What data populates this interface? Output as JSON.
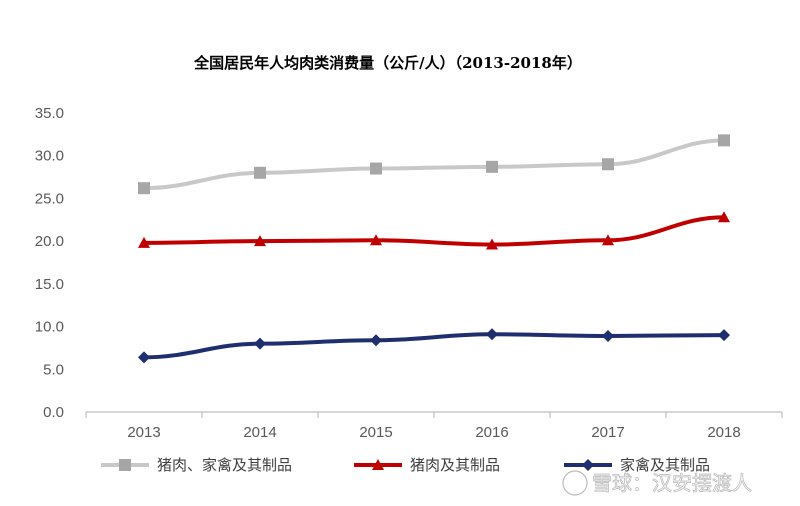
{
  "chart_data": {
    "type": "line",
    "title": "全国居民年人均肉类消费量（公斤/人）（2013-2018年）",
    "xlabel": "",
    "ylabel": "",
    "categories": [
      "2013",
      "2014",
      "2015",
      "2016",
      "2017",
      "2018"
    ],
    "ylim": [
      0,
      35
    ],
    "yticks": [
      "0.0",
      "5.0",
      "10.0",
      "15.0",
      "20.0",
      "25.0",
      "30.0",
      "35.0"
    ],
    "grid": false,
    "legend_position": "bottom",
    "series": [
      {
        "name": "猪肉、家禽及其制品",
        "values": [
          26.2,
          28.0,
          28.5,
          28.7,
          29.0,
          31.8
        ],
        "color": "#c8c8c8",
        "marker": "square"
      },
      {
        "name": "猪肉及其制品",
        "values": [
          19.8,
          20.0,
          20.1,
          19.6,
          20.1,
          22.8
        ],
        "color": "#c00000",
        "marker": "triangle"
      },
      {
        "name": "家禽及其制品",
        "values": [
          6.4,
          8.0,
          8.4,
          9.1,
          8.9,
          9.0
        ],
        "color": "#1f2e6e",
        "marker": "diamond"
      }
    ]
  },
  "watermark": {
    "text": "雪球：汉安摆渡人"
  }
}
